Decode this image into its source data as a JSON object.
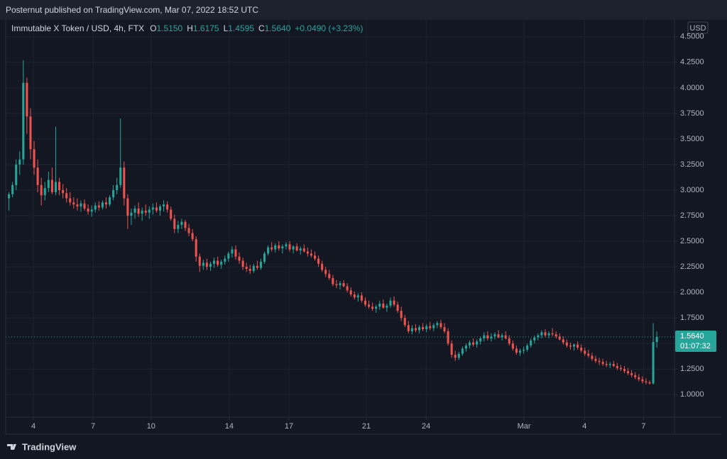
{
  "header": {
    "publisher": "Posternut published on TradingView.com, Mar 07, 2022 18:52 UTC"
  },
  "footer": {
    "brand": "TradingView"
  },
  "chart_data": {
    "type": "candlestick",
    "legend": {
      "symbol": "Immutable X Token / USD, 4h, FTX",
      "fields": [
        {
          "key": "O",
          "value": "1.5150"
        },
        {
          "key": "H",
          "value": "1.6175"
        },
        {
          "key": "L",
          "value": "1.4595"
        },
        {
          "key": "C",
          "value": "1.5640"
        }
      ],
      "change": "+0.0490 (+3.23%)"
    },
    "currency": "USD",
    "countdown": "01:07:32",
    "last_price": 1.564,
    "last_price_label": "1.5640",
    "up_color": "#26a69a",
    "down_color": "#ef5350",
    "grid": true,
    "ylim": [
      0.78,
      4.665
    ],
    "yticks": [
      {
        "value": 1,
        "label": "1.0000"
      },
      {
        "value": 1.25,
        "label": "1.2500"
      },
      {
        "value": 1.5,
        "label": "1.5000"
      },
      {
        "value": 1.75,
        "label": "1.7500"
      },
      {
        "value": 2,
        "label": "2.0000"
      },
      {
        "value": 2.25,
        "label": "2.2500"
      },
      {
        "value": 2.5,
        "label": "2.5000"
      },
      {
        "value": 2.75,
        "label": "2.7500"
      },
      {
        "value": 3,
        "label": "3.0000"
      },
      {
        "value": 3.25,
        "label": "3.2500"
      },
      {
        "value": 3.5,
        "label": "3.5000"
      },
      {
        "value": 3.75,
        "label": "3.7500"
      },
      {
        "value": 4,
        "label": "4.0000"
      },
      {
        "value": 4.25,
        "label": "4.2500"
      },
      {
        "value": 4.5,
        "label": "4.5000"
      }
    ],
    "xlim": [
      -0.9,
      184.9
    ],
    "xticks": [
      {
        "value": 6.8,
        "label": "4"
      },
      {
        "value": 23.4,
        "label": "7"
      },
      {
        "value": 39.5,
        "label": "10"
      },
      {
        "value": 61.2,
        "label": "14"
      },
      {
        "value": 77.8,
        "label": "17"
      },
      {
        "value": 99.3,
        "label": "21"
      },
      {
        "value": 115.9,
        "label": "24"
      },
      {
        "value": 143.1,
        "label": "Mar"
      },
      {
        "value": 159.9,
        "label": "4"
      },
      {
        "value": 176.3,
        "label": "7"
      }
    ],
    "ohlc": [
      [
        2.92,
        2.98,
        2.8,
        2.96
      ],
      [
        2.96,
        3.08,
        2.93,
        3.05
      ],
      [
        3.05,
        3.3,
        3,
        3.25
      ],
      [
        3.25,
        3.38,
        3.15,
        3.3
      ],
      [
        3.3,
        4.27,
        3.25,
        4.05
      ],
      [
        4.05,
        4.1,
        3.55,
        3.72
      ],
      [
        3.72,
        3.8,
        3.3,
        3.4
      ],
      [
        3.4,
        3.48,
        3.15,
        3.22
      ],
      [
        3.22,
        3.3,
        2.98,
        3.05
      ],
      [
        3.05,
        3.12,
        2.85,
        2.95
      ],
      [
        2.95,
        3.08,
        2.9,
        3.02
      ],
      [
        3.02,
        3.18,
        2.98,
        3.1
      ],
      [
        3.1,
        3.22,
        2.96,
        2.98
      ],
      [
        2.98,
        3.62,
        2.95,
        3.08
      ],
      [
        3.08,
        3.12,
        2.95,
        3
      ],
      [
        3,
        3.06,
        2.92,
        2.97
      ],
      [
        2.97,
        3.02,
        2.88,
        2.92
      ],
      [
        2.92,
        2.98,
        2.85,
        2.88
      ],
      [
        2.88,
        2.93,
        2.82,
        2.86
      ],
      [
        2.86,
        2.92,
        2.8,
        2.84
      ],
      [
        2.84,
        2.9,
        2.79,
        2.87
      ],
      [
        2.87,
        2.91,
        2.8,
        2.82
      ],
      [
        2.82,
        2.86,
        2.76,
        2.79
      ],
      [
        2.79,
        2.85,
        2.74,
        2.81
      ],
      [
        2.81,
        2.88,
        2.78,
        2.85
      ],
      [
        2.85,
        2.89,
        2.8,
        2.83
      ],
      [
        2.83,
        2.9,
        2.81,
        2.88
      ],
      [
        2.88,
        2.93,
        2.82,
        2.86
      ],
      [
        2.86,
        2.95,
        2.84,
        2.93
      ],
      [
        2.93,
        3.05,
        2.9,
        3
      ],
      [
        3,
        3.12,
        2.96,
        3.05
      ],
      [
        3.05,
        3.7,
        3.02,
        3.22
      ],
      [
        3.22,
        3.28,
        2.85,
        2.92
      ],
      [
        2.92,
        2.96,
        2.62,
        2.75
      ],
      [
        2.75,
        2.82,
        2.66,
        2.78
      ],
      [
        2.78,
        2.85,
        2.72,
        2.82
      ],
      [
        2.82,
        2.88,
        2.74,
        2.77
      ],
      [
        2.77,
        2.83,
        2.7,
        2.8
      ],
      [
        2.8,
        2.86,
        2.75,
        2.78
      ],
      [
        2.78,
        2.84,
        2.72,
        2.81
      ],
      [
        2.81,
        2.87,
        2.76,
        2.83
      ],
      [
        2.83,
        2.88,
        2.78,
        2.8
      ],
      [
        2.8,
        2.86,
        2.75,
        2.84
      ],
      [
        2.84,
        2.9,
        2.79,
        2.86
      ],
      [
        2.86,
        2.89,
        2.78,
        2.81
      ],
      [
        2.81,
        2.84,
        2.7,
        2.72
      ],
      [
        2.72,
        2.76,
        2.58,
        2.62
      ],
      [
        2.62,
        2.7,
        2.58,
        2.66
      ],
      [
        2.66,
        2.72,
        2.62,
        2.69
      ],
      [
        2.69,
        2.71,
        2.6,
        2.63
      ],
      [
        2.63,
        2.67,
        2.55,
        2.58
      ],
      [
        2.58,
        2.62,
        2.5,
        2.52
      ],
      [
        2.52,
        2.55,
        2.3,
        2.35
      ],
      [
        2.35,
        2.38,
        2.2,
        2.26
      ],
      [
        2.26,
        2.32,
        2.22,
        2.29
      ],
      [
        2.29,
        2.33,
        2.22,
        2.25
      ],
      [
        2.25,
        2.3,
        2.21,
        2.28
      ],
      [
        2.28,
        2.34,
        2.24,
        2.31
      ],
      [
        2.31,
        2.35,
        2.25,
        2.27
      ],
      [
        2.27,
        2.32,
        2.23,
        2.3
      ],
      [
        2.3,
        2.36,
        2.27,
        2.33
      ],
      [
        2.33,
        2.4,
        2.3,
        2.38
      ],
      [
        2.38,
        2.45,
        2.34,
        2.42
      ],
      [
        2.42,
        2.46,
        2.32,
        2.35
      ],
      [
        2.35,
        2.39,
        2.28,
        2.31
      ],
      [
        2.31,
        2.34,
        2.22,
        2.25
      ],
      [
        2.25,
        2.29,
        2.2,
        2.23
      ],
      [
        2.23,
        2.27,
        2.18,
        2.21
      ],
      [
        2.21,
        2.28,
        2.19,
        2.26
      ],
      [
        2.26,
        2.31,
        2.22,
        2.24
      ],
      [
        2.24,
        2.33,
        2.22,
        2.3
      ],
      [
        2.3,
        2.4,
        2.28,
        2.38
      ],
      [
        2.38,
        2.46,
        2.36,
        2.44
      ],
      [
        2.44,
        2.49,
        2.4,
        2.42
      ],
      [
        2.42,
        2.48,
        2.39,
        2.46
      ],
      [
        2.46,
        2.5,
        2.41,
        2.43
      ],
      [
        2.43,
        2.47,
        2.38,
        2.45
      ],
      [
        2.45,
        2.49,
        2.42,
        2.47
      ],
      [
        2.47,
        2.5,
        2.4,
        2.42
      ],
      [
        2.42,
        2.46,
        2.38,
        2.45
      ],
      [
        2.45,
        2.48,
        2.4,
        2.41
      ],
      [
        2.41,
        2.45,
        2.37,
        2.43
      ],
      [
        2.43,
        2.47,
        2.39,
        2.4
      ],
      [
        2.4,
        2.44,
        2.35,
        2.38
      ],
      [
        2.38,
        2.42,
        2.34,
        2.36
      ],
      [
        2.36,
        2.4,
        2.31,
        2.33
      ],
      [
        2.33,
        2.36,
        2.25,
        2.28
      ],
      [
        2.28,
        2.31,
        2.2,
        2.22
      ],
      [
        2.22,
        2.25,
        2.15,
        2.18
      ],
      [
        2.18,
        2.22,
        2.12,
        2.14
      ],
      [
        2.14,
        2.17,
        2.06,
        2.08
      ],
      [
        2.08,
        2.12,
        2.04,
        2.07
      ],
      [
        2.07,
        2.11,
        2.03,
        2.09
      ],
      [
        2.09,
        2.12,
        2.05,
        2.06
      ],
      [
        2.06,
        2.09,
        2,
        2.02
      ],
      [
        2.02,
        2.05,
        1.96,
        1.98
      ],
      [
        1.98,
        2.01,
        1.93,
        1.95
      ],
      [
        1.95,
        1.99,
        1.91,
        1.97
      ],
      [
        1.97,
        2,
        1.9,
        1.92
      ],
      [
        1.92,
        1.95,
        1.86,
        1.88
      ],
      [
        1.88,
        1.92,
        1.84,
        1.86
      ],
      [
        1.86,
        1.9,
        1.82,
        1.84
      ],
      [
        1.84,
        1.88,
        1.8,
        1.86
      ],
      [
        1.86,
        1.92,
        1.83,
        1.89
      ],
      [
        1.89,
        1.93,
        1.84,
        1.85
      ],
      [
        1.85,
        1.89,
        1.81,
        1.87
      ],
      [
        1.87,
        1.95,
        1.85,
        1.92
      ],
      [
        1.92,
        1.96,
        1.86,
        1.88
      ],
      [
        1.88,
        1.91,
        1.8,
        1.82
      ],
      [
        1.82,
        1.86,
        1.72,
        1.75
      ],
      [
        1.75,
        1.78,
        1.66,
        1.68
      ],
      [
        1.68,
        1.72,
        1.6,
        1.62
      ],
      [
        1.62,
        1.68,
        1.59,
        1.65
      ],
      [
        1.65,
        1.69,
        1.61,
        1.63
      ],
      [
        1.63,
        1.68,
        1.6,
        1.66
      ],
      [
        1.66,
        1.7,
        1.62,
        1.64
      ],
      [
        1.64,
        1.69,
        1.61,
        1.67
      ],
      [
        1.67,
        1.71,
        1.63,
        1.65
      ],
      [
        1.65,
        1.7,
        1.62,
        1.68
      ],
      [
        1.68,
        1.72,
        1.65,
        1.7
      ],
      [
        1.7,
        1.73,
        1.64,
        1.66
      ],
      [
        1.66,
        1.7,
        1.6,
        1.62
      ],
      [
        1.62,
        1.65,
        1.48,
        1.5
      ],
      [
        1.5,
        1.53,
        1.36,
        1.39
      ],
      [
        1.39,
        1.43,
        1.33,
        1.36
      ],
      [
        1.36,
        1.42,
        1.34,
        1.4
      ],
      [
        1.4,
        1.47,
        1.38,
        1.45
      ],
      [
        1.45,
        1.5,
        1.42,
        1.48
      ],
      [
        1.48,
        1.53,
        1.45,
        1.51
      ],
      [
        1.51,
        1.55,
        1.47,
        1.49
      ],
      [
        1.49,
        1.54,
        1.46,
        1.52
      ],
      [
        1.52,
        1.57,
        1.49,
        1.55
      ],
      [
        1.55,
        1.61,
        1.52,
        1.58
      ],
      [
        1.58,
        1.62,
        1.53,
        1.55
      ],
      [
        1.55,
        1.6,
        1.52,
        1.57
      ],
      [
        1.57,
        1.61,
        1.54,
        1.59
      ],
      [
        1.59,
        1.63,
        1.55,
        1.56
      ],
      [
        1.56,
        1.6,
        1.53,
        1.58
      ],
      [
        1.58,
        1.62,
        1.54,
        1.55
      ],
      [
        1.55,
        1.58,
        1.48,
        1.5
      ],
      [
        1.5,
        1.53,
        1.43,
        1.45
      ],
      [
        1.45,
        1.48,
        1.39,
        1.41
      ],
      [
        1.41,
        1.45,
        1.38,
        1.43
      ],
      [
        1.43,
        1.47,
        1.4,
        1.44
      ],
      [
        1.44,
        1.5,
        1.42,
        1.48
      ],
      [
        1.48,
        1.55,
        1.46,
        1.53
      ],
      [
        1.53,
        1.58,
        1.5,
        1.56
      ],
      [
        1.56,
        1.6,
        1.53,
        1.58
      ],
      [
        1.58,
        1.63,
        1.55,
        1.61
      ],
      [
        1.61,
        1.64,
        1.56,
        1.58
      ],
      [
        1.58,
        1.62,
        1.55,
        1.6
      ],
      [
        1.6,
        1.65,
        1.57,
        1.59
      ],
      [
        1.59,
        1.62,
        1.55,
        1.57
      ],
      [
        1.57,
        1.6,
        1.53,
        1.54
      ],
      [
        1.54,
        1.57,
        1.49,
        1.51
      ],
      [
        1.51,
        1.54,
        1.46,
        1.48
      ],
      [
        1.48,
        1.51,
        1.44,
        1.47
      ],
      [
        1.47,
        1.5,
        1.43,
        1.49
      ],
      [
        1.49,
        1.52,
        1.44,
        1.46
      ],
      [
        1.46,
        1.49,
        1.41,
        1.43
      ],
      [
        1.43,
        1.46,
        1.38,
        1.4
      ],
      [
        1.4,
        1.44,
        1.36,
        1.38
      ],
      [
        1.38,
        1.41,
        1.33,
        1.35
      ],
      [
        1.35,
        1.38,
        1.31,
        1.33
      ],
      [
        1.33,
        1.36,
        1.29,
        1.32
      ],
      [
        1.32,
        1.35,
        1.28,
        1.3
      ],
      [
        1.3,
        1.33,
        1.27,
        1.29
      ],
      [
        1.29,
        1.32,
        1.26,
        1.3
      ],
      [
        1.3,
        1.33,
        1.27,
        1.28
      ],
      [
        1.28,
        1.31,
        1.24,
        1.26
      ],
      [
        1.26,
        1.29,
        1.23,
        1.25
      ],
      [
        1.25,
        1.28,
        1.21,
        1.23
      ],
      [
        1.23,
        1.26,
        1.19,
        1.21
      ],
      [
        1.21,
        1.24,
        1.17,
        1.19
      ],
      [
        1.19,
        1.22,
        1.15,
        1.17
      ],
      [
        1.17,
        1.2,
        1.13,
        1.15
      ],
      [
        1.15,
        1.18,
        1.11,
        1.13
      ],
      [
        1.13,
        1.16,
        1.1,
        1.12
      ],
      [
        1.12,
        1.14,
        1.1,
        1.11
      ],
      [
        1.11,
        1.7,
        1.1,
        1.515
      ],
      [
        1.515,
        1.6175,
        1.4595,
        1.564
      ]
    ]
  }
}
